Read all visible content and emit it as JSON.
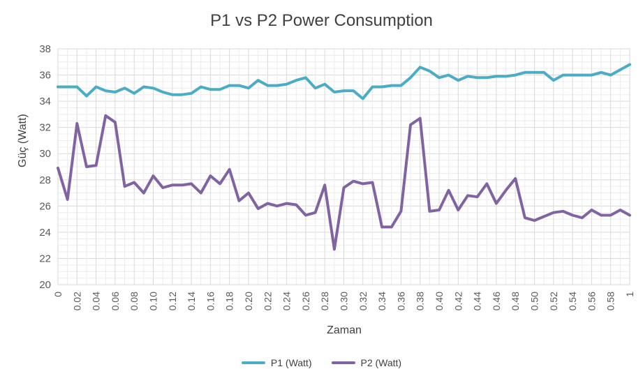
{
  "chart_data": {
    "type": "line",
    "title": "P1 vs P2 Power Consumption",
    "xlabel": "Zaman",
    "ylabel": "Güç (Watt)",
    "ylim": [
      20,
      38
    ],
    "yticks": [
      "20",
      "22",
      "24",
      "26",
      "28",
      "30",
      "32",
      "34",
      "36",
      "38"
    ],
    "x_tick_labels": [
      "0",
      "0.02",
      "0.04",
      "0.06",
      "0.08",
      "0.10",
      "0.12",
      "0.14",
      "0.16",
      "0.18",
      "0.20",
      "0.22",
      "0.24",
      "0.26",
      "0.28",
      "0.30",
      "0.32",
      "0.34",
      "0.36",
      "0.38",
      "0.40",
      "0.42",
      "0.44",
      "0.46",
      "0.48",
      "0.50",
      "0.52",
      "0.54",
      "0.56",
      "0.58",
      "1"
    ],
    "grid": true,
    "legend_position": "bottom",
    "series": [
      {
        "name": "P1 (Watt)",
        "color": "#4BACC6",
        "values": [
          35.1,
          35.1,
          35.1,
          34.4,
          35.1,
          34.8,
          34.7,
          35.0,
          34.6,
          35.1,
          35.0,
          34.7,
          34.5,
          34.5,
          34.6,
          35.1,
          34.9,
          34.9,
          35.2,
          35.2,
          35.0,
          35.6,
          35.2,
          35.2,
          35.3,
          35.6,
          35.8,
          35.0,
          35.3,
          34.7,
          34.8,
          34.8,
          34.2,
          35.1,
          35.1,
          35.2,
          35.2,
          35.8,
          36.6,
          36.3,
          35.8,
          36.0,
          35.6,
          35.9,
          35.8,
          35.8,
          35.9,
          35.9,
          36.0,
          36.2,
          36.2,
          36.2,
          35.6,
          36.0,
          36.0,
          36.0,
          36.0,
          36.2,
          36.0,
          36.4,
          36.8
        ]
      },
      {
        "name": "P2 (Watt)",
        "color": "#8064A2",
        "values": [
          28.9,
          26.5,
          32.3,
          29.0,
          29.1,
          32.9,
          32.4,
          27.5,
          27.8,
          27.0,
          28.3,
          27.4,
          27.6,
          27.6,
          27.7,
          27.0,
          28.3,
          27.7,
          28.8,
          26.4,
          27.0,
          25.8,
          26.2,
          26.0,
          26.2,
          26.1,
          25.3,
          25.5,
          27.6,
          22.7,
          27.4,
          27.9,
          27.7,
          27.8,
          24.4,
          24.4,
          25.6,
          32.2,
          32.7,
          25.6,
          25.7,
          27.2,
          25.7,
          26.8,
          26.7,
          27.7,
          26.2,
          27.2,
          28.1,
          25.1,
          24.9,
          25.2,
          25.5,
          25.6,
          25.3,
          25.1,
          25.7,
          25.3,
          25.3,
          25.7,
          25.3
        ]
      }
    ]
  }
}
